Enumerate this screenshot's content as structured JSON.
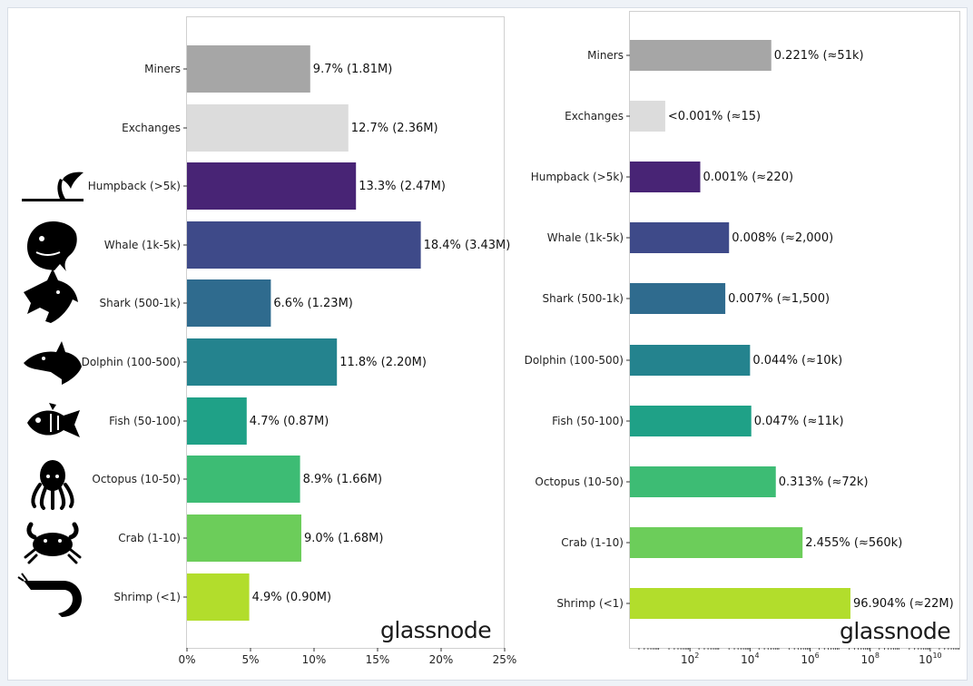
{
  "chart_data": [
    {
      "type": "bar",
      "orientation": "horizontal",
      "categories": [
        "Miners",
        "Exchanges",
        "Humpback (>5k)",
        "Whale (1k-5k)",
        "Shark (500-1k)",
        "Dolphin (100-500)",
        "Fish (50-100)",
        "Octopus (10-50)",
        "Crab (1-10)",
        "Shrimp (<1)"
      ],
      "values": [
        9.7,
        12.7,
        13.3,
        18.4,
        6.6,
        11.8,
        4.7,
        8.9,
        9.0,
        4.9
      ],
      "data_labels": [
        "9.7% (1.81M)",
        "12.7% (2.36M)",
        "13.3% (2.47M)",
        "18.4% (3.43M)",
        "6.6% (1.23M)",
        "11.8% (2.20M)",
        "4.7% (0.87M)",
        "8.9% (1.66M)",
        "9.0% (1.68M)",
        "4.9% (0.90M)"
      ],
      "xlim": [
        0,
        25
      ],
      "x_ticks": [
        "0%",
        "5%",
        "10%",
        "15%",
        "20%",
        "25%"
      ],
      "x_tick_values": [
        0,
        5,
        10,
        15,
        20,
        25
      ],
      "grid": false,
      "watermark": "glassnode"
    },
    {
      "type": "bar",
      "orientation": "horizontal",
      "x_scale": "log",
      "categories": [
        "Miners",
        "Exchanges",
        "Humpback (>5k)",
        "Whale (1k-5k)",
        "Shark (500-1k)",
        "Dolphin (100-500)",
        "Fish (50-100)",
        "Octopus (10-50)",
        "Crab (1-10)",
        "Shrimp (<1)"
      ],
      "values": [
        51000,
        15,
        220,
        2000,
        1500,
        10000,
        11000,
        72000,
        560000,
        22000000
      ],
      "data_labels": [
        "0.221% (≈51k)",
        "<0.001% (≈15)",
        "0.001% (≈220)",
        "0.008% (≈2,000)",
        "0.007% (≈1,500)",
        "0.044% (≈10k)",
        "0.047% (≈11k)",
        "0.313% (≈72k)",
        "2.455% (≈560k)",
        "96.904% (≈22M)"
      ],
      "xlim": [
        1,
        100000000000
      ],
      "x_tick_base": "10",
      "x_tick_exponents": [
        "2",
        "4",
        "6",
        "8",
        "10"
      ],
      "x_tick_values": [
        100,
        10000,
        1000000,
        100000000,
        10000000000
      ],
      "grid": false,
      "watermark": "glassnode"
    }
  ],
  "colors": [
    "#a6a6a6",
    "#dcdcdc",
    "#482475",
    "#3e4a89",
    "#2f6b8e",
    "#24838e",
    "#1fa187",
    "#3dbc74",
    "#6ccd5a",
    "#b2dd2c"
  ],
  "icons": [
    "humpback-whale-icon",
    "whale-icon",
    "shark-icon",
    "dolphin-icon",
    "fish-icon",
    "octopus-icon",
    "crab-icon",
    "shrimp-icon"
  ]
}
